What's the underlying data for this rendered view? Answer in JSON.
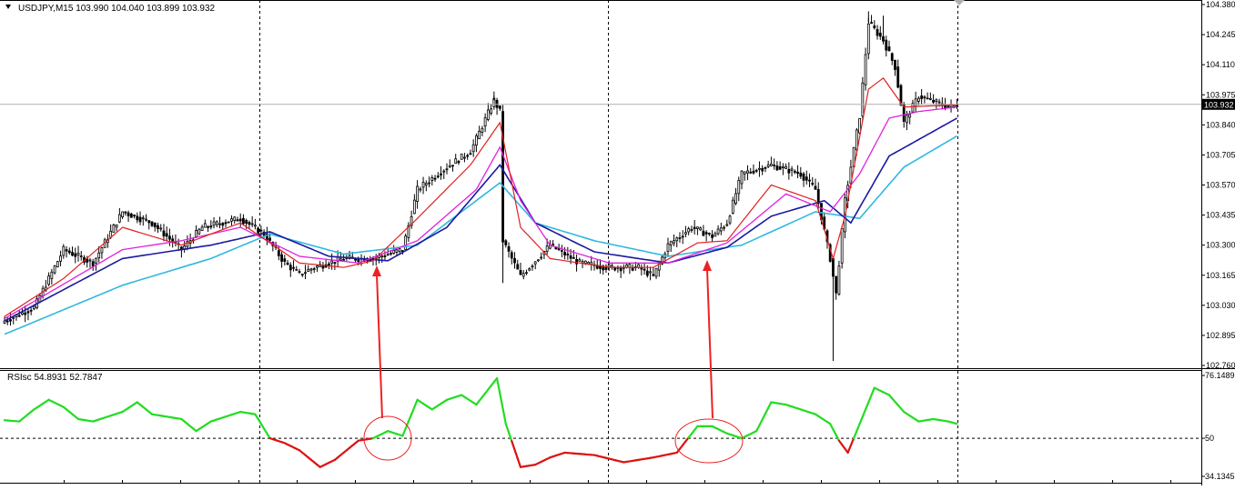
{
  "header": {
    "symbol": "USDJPY,M15",
    "ohlc": "103.990 104.040 103.899 103.932"
  },
  "rsi_header": {
    "label": "RSIsc",
    "values": "54.8931 52.7847"
  },
  "colors": {
    "candle": "#000000",
    "ema_fast": "#e02020",
    "ema_mid": "#e020e0",
    "ema_slow": "#1a1aa0",
    "ema_slowest": "#30b8e0",
    "rsi_up": "#22dd22",
    "rsi_down": "#dd1111",
    "annotation": "#ee2222",
    "price_tag": "#000000"
  },
  "chart_data": [
    {
      "type": "candlestick",
      "title": "",
      "ylim": [
        102.76,
        104.38
      ],
      "yticks": [
        "104.380",
        "104.245",
        "104.110",
        "103.975",
        "103.840",
        "103.705",
        "103.570",
        "103.435",
        "103.300",
        "103.165",
        "103.030",
        "102.895",
        "102.760"
      ],
      "current_price": "103.932",
      "anchors_close": [
        [
          0,
          102.96
        ],
        [
          10,
          103.02
        ],
        [
          20,
          103.28
        ],
        [
          30,
          103.22
        ],
        [
          40,
          103.45
        ],
        [
          50,
          103.4
        ],
        [
          60,
          103.28
        ],
        [
          67,
          103.38
        ],
        [
          80,
          103.42
        ],
        [
          88,
          103.35
        ],
        [
          95,
          103.22
        ],
        [
          100,
          103.17
        ],
        [
          105,
          103.2
        ],
        [
          115,
          103.24
        ],
        [
          125,
          103.24
        ],
        [
          135,
          103.28
        ],
        [
          140,
          103.55
        ],
        [
          150,
          103.65
        ],
        [
          158,
          103.72
        ],
        [
          166,
          103.95
        ],
        [
          168,
          103.9
        ],
        [
          169,
          103.32
        ],
        [
          175,
          103.16
        ],
        [
          185,
          103.3
        ],
        [
          195,
          103.22
        ],
        [
          205,
          103.2
        ],
        [
          215,
          103.2
        ],
        [
          220,
          103.16
        ],
        [
          225,
          103.3
        ],
        [
          233,
          103.38
        ],
        [
          240,
          103.34
        ],
        [
          245,
          103.4
        ],
        [
          250,
          103.62
        ],
        [
          260,
          103.66
        ],
        [
          270,
          103.62
        ],
        [
          275,
          103.55
        ],
        [
          280,
          103.24
        ],
        [
          282,
          103.08
        ],
        [
          285,
          103.5
        ],
        [
          290,
          103.88
        ],
        [
          293,
          104.3
        ],
        [
          298,
          104.22
        ],
        [
          302,
          104.1
        ],
        [
          305,
          103.85
        ],
        [
          310,
          103.97
        ],
        [
          320,
          103.92
        ],
        [
          323,
          103.93
        ]
      ],
      "anchors_ema_fast": [
        [
          0,
          102.98
        ],
        [
          20,
          103.15
        ],
        [
          40,
          103.38
        ],
        [
          60,
          103.3
        ],
        [
          80,
          103.4
        ],
        [
          100,
          103.22
        ],
        [
          115,
          103.2
        ],
        [
          125,
          103.23
        ],
        [
          140,
          103.42
        ],
        [
          158,
          103.66
        ],
        [
          168,
          103.85
        ],
        [
          175,
          103.38
        ],
        [
          185,
          103.24
        ],
        [
          205,
          103.2
        ],
        [
          220,
          103.2
        ],
        [
          235,
          103.31
        ],
        [
          245,
          103.32
        ],
        [
          260,
          103.57
        ],
        [
          275,
          103.5
        ],
        [
          281,
          103.24
        ],
        [
          285,
          103.43
        ],
        [
          293,
          104.0
        ],
        [
          298,
          104.05
        ],
        [
          305,
          103.92
        ],
        [
          323,
          103.93
        ]
      ],
      "anchors_ema_mid": [
        [
          0,
          102.97
        ],
        [
          40,
          103.28
        ],
        [
          60,
          103.32
        ],
        [
          80,
          103.38
        ],
        [
          100,
          103.25
        ],
        [
          120,
          103.22
        ],
        [
          140,
          103.32
        ],
        [
          160,
          103.55
        ],
        [
          168,
          103.74
        ],
        [
          175,
          103.5
        ],
        [
          185,
          103.3
        ],
        [
          205,
          103.22
        ],
        [
          225,
          103.22
        ],
        [
          245,
          103.31
        ],
        [
          265,
          103.53
        ],
        [
          280,
          103.45
        ],
        [
          290,
          103.62
        ],
        [
          300,
          103.87
        ],
        [
          310,
          103.9
        ],
        [
          323,
          103.92
        ]
      ],
      "anchors_ema_slow": [
        [
          0,
          102.96
        ],
        [
          40,
          103.24
        ],
        [
          70,
          103.3
        ],
        [
          90,
          103.36
        ],
        [
          110,
          103.25
        ],
        [
          130,
          103.23
        ],
        [
          150,
          103.38
        ],
        [
          168,
          103.66
        ],
        [
          180,
          103.4
        ],
        [
          200,
          103.27
        ],
        [
          225,
          103.22
        ],
        [
          245,
          103.29
        ],
        [
          260,
          103.43
        ],
        [
          278,
          103.5
        ],
        [
          287,
          103.4
        ],
        [
          300,
          103.7
        ],
        [
          323,
          103.87
        ]
      ],
      "anchors_ema_slowest": [
        [
          0,
          102.9
        ],
        [
          40,
          103.12
        ],
        [
          70,
          103.24
        ],
        [
          90,
          103.35
        ],
        [
          115,
          103.26
        ],
        [
          140,
          103.3
        ],
        [
          158,
          103.48
        ],
        [
          168,
          103.58
        ],
        [
          180,
          103.4
        ],
        [
          200,
          103.32
        ],
        [
          225,
          103.25
        ],
        [
          250,
          103.3
        ],
        [
          275,
          103.45
        ],
        [
          290,
          103.42
        ],
        [
          305,
          103.65
        ],
        [
          323,
          103.79
        ]
      ]
    },
    {
      "type": "line",
      "title": "",
      "ylim": [
        34.1345,
        76.1489
      ],
      "yticks": [
        "76.1489",
        "50",
        "34.1345"
      ],
      "threshold": 50,
      "anchors": [
        [
          0,
          57.5
        ],
        [
          5,
          57
        ],
        [
          10,
          62
        ],
        [
          15,
          66
        ],
        [
          20,
          63
        ],
        [
          25,
          58
        ],
        [
          30,
          57
        ],
        [
          35,
          59
        ],
        [
          40,
          61
        ],
        [
          45,
          65
        ],
        [
          50,
          60
        ],
        [
          55,
          59
        ],
        [
          60,
          58
        ],
        [
          65,
          53
        ],
        [
          70,
          57
        ],
        [
          75,
          59
        ],
        [
          80,
          61
        ],
        [
          85,
          60
        ],
        [
          90,
          50
        ],
        [
          95,
          48
        ],
        [
          100,
          45
        ],
        [
          107,
          38
        ],
        [
          112,
          41
        ],
        [
          120,
          49
        ],
        [
          125,
          50
        ],
        [
          130,
          53
        ],
        [
          135,
          51
        ],
        [
          140,
          66
        ],
        [
          145,
          62
        ],
        [
          150,
          66
        ],
        [
          155,
          68
        ],
        [
          160,
          64
        ],
        [
          167,
          75
        ],
        [
          170,
          56
        ],
        [
          175,
          38
        ],
        [
          180,
          39
        ],
        [
          185,
          42
        ],
        [
          190,
          44
        ],
        [
          200,
          43
        ],
        [
          210,
          40
        ],
        [
          220,
          42
        ],
        [
          228,
          44
        ],
        [
          235,
          55
        ],
        [
          240,
          55
        ],
        [
          245,
          52
        ],
        [
          250,
          50
        ],
        [
          255,
          53
        ],
        [
          260,
          65
        ],
        [
          265,
          64
        ],
        [
          270,
          62
        ],
        [
          275,
          60
        ],
        [
          280,
          56
        ],
        [
          283,
          49
        ],
        [
          286,
          44
        ],
        [
          290,
          56
        ],
        [
          295,
          71
        ],
        [
          300,
          68
        ],
        [
          305,
          61
        ],
        [
          310,
          57
        ],
        [
          315,
          58
        ],
        [
          320,
          57
        ],
        [
          323,
          56
        ]
      ]
    }
  ]
}
